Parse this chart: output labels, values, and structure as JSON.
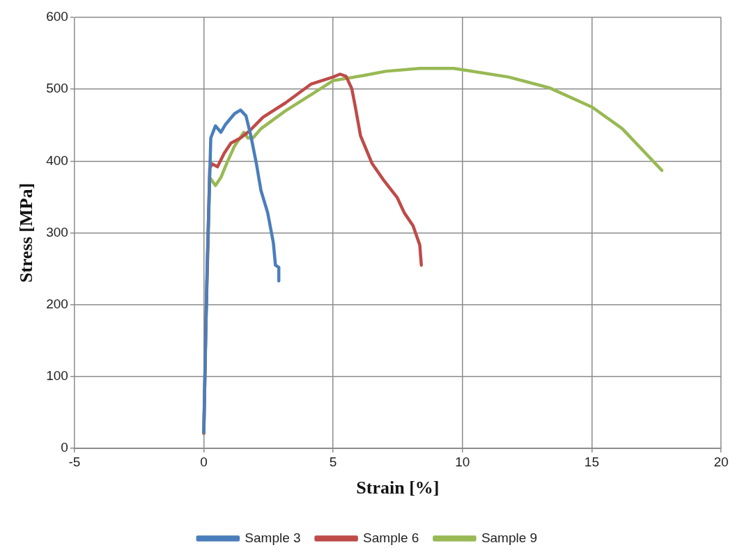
{
  "chart_data": {
    "type": "line",
    "xlabel": "Strain [%]",
    "ylabel": "Stress [MPa]",
    "xlim": [
      -5,
      20
    ],
    "xticks": [
      -5,
      0,
      5,
      10,
      15,
      20
    ],
    "ylim": [
      0,
      600
    ],
    "yticks": [
      0,
      100,
      200,
      300,
      400,
      500,
      600
    ],
    "grid": true,
    "legend": "bottom",
    "marker": "none",
    "line_style": "solid",
    "series": [
      {
        "name": "Sample 3",
        "color": "#4a7ebb",
        "x": [
          0,
          0.13,
          0.27,
          0.45,
          0.66,
          0.84,
          1.19,
          1.42,
          1.63,
          1.82,
          2.03,
          2.21,
          2.47,
          2.69,
          2.77,
          2.9,
          2.9
        ],
        "values": [
          22,
          255,
          432,
          449,
          440,
          451,
          466,
          471,
          463,
          435,
          397,
          359,
          328,
          286,
          255,
          252,
          233
        ]
      },
      {
        "name": "Sample 6",
        "color": "#be4b48",
        "x": [
          0,
          0.08,
          0.23,
          0.32,
          0.53,
          0.79,
          1.05,
          1.42,
          1.77,
          2.29,
          3.16,
          4.14,
          5.0,
          5.27,
          5.5,
          5.72,
          5.85,
          6.06,
          6.5,
          6.96,
          7.48,
          7.75,
          8.09,
          8.35,
          8.41
        ],
        "values": [
          21,
          172,
          390,
          396,
          392,
          411,
          425,
          432,
          442,
          461,
          481,
          507,
          517,
          521,
          518,
          501,
          477,
          435,
          397,
          373,
          349,
          328,
          310,
          283,
          255
        ]
      },
      {
        "name": "Sample 9",
        "color": "#98b954",
        "x": [
          0,
          0.08,
          0.23,
          0.45,
          0.66,
          0.9,
          1.19,
          1.55,
          1.71,
          1.9,
          2.21,
          3.16,
          4.22,
          5.0,
          6.17,
          7.04,
          8.35,
          9.67,
          10.01,
          11.78,
          13.36,
          15.02,
          16.18,
          17.71
        ],
        "values": [
          21,
          172,
          377,
          366,
          377,
          398,
          421,
          440,
          432,
          432,
          445,
          470,
          494,
          512,
          519,
          525,
          529,
          529,
          527,
          517,
          502,
          475,
          445,
          387
        ]
      }
    ]
  }
}
